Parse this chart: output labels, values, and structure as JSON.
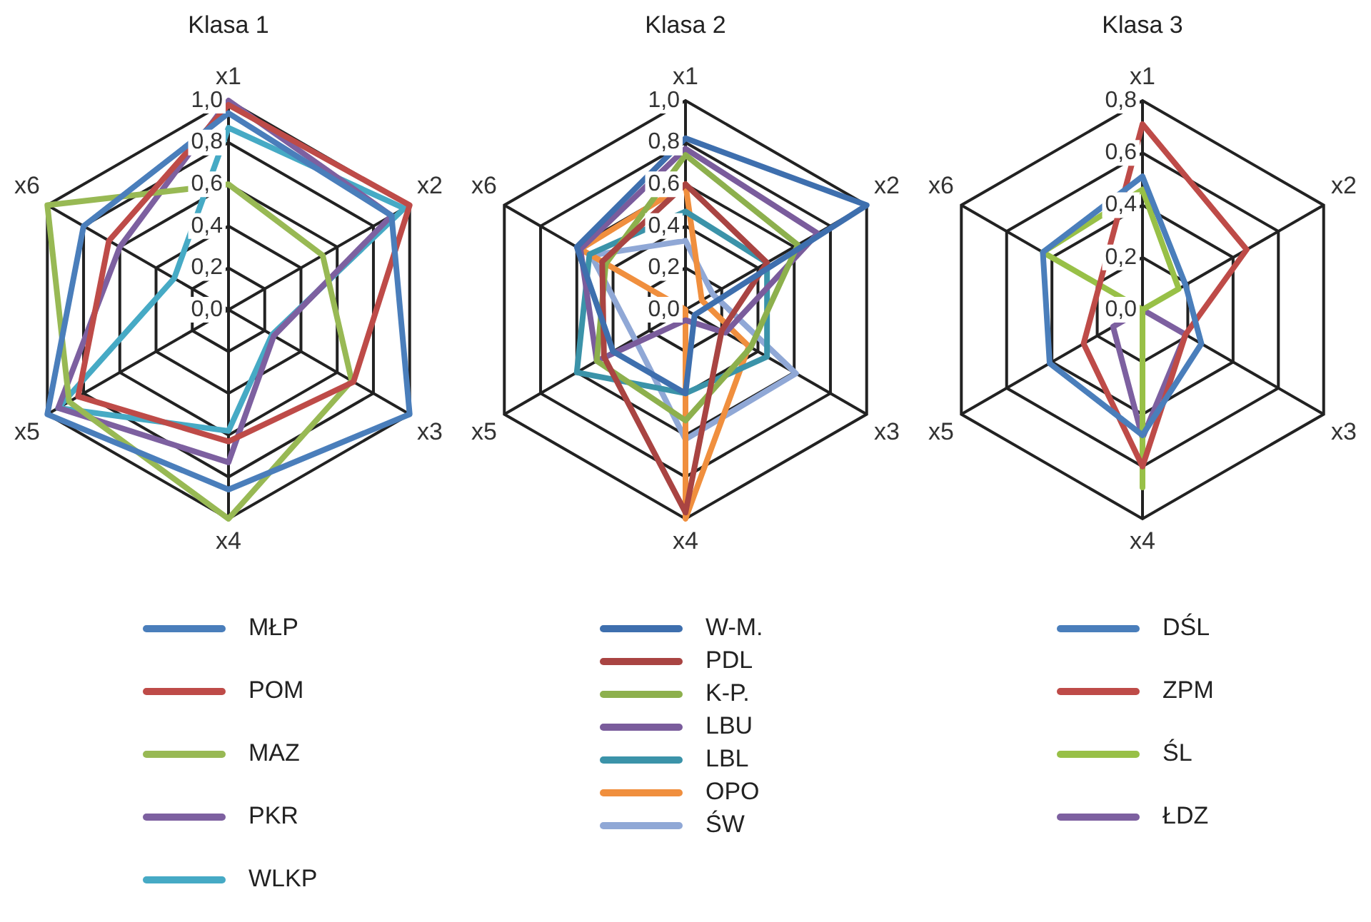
{
  "chart_data": [
    {
      "type": "radar",
      "title": "Klasa 1",
      "categories": [
        "x1",
        "x2",
        "x3",
        "x4",
        "x5",
        "x6"
      ],
      "ylim": [
        0,
        1
      ],
      "yticks": [
        {
          "value": 0,
          "label": "0,0"
        },
        {
          "value": 0.2,
          "label": "0,2"
        },
        {
          "value": 0.4,
          "label": "0,4"
        },
        {
          "value": 0.6,
          "label": "0,6"
        },
        {
          "value": 0.8,
          "label": "0,8"
        },
        {
          "value": 1,
          "label": "1,0"
        }
      ],
      "grid": true,
      "legend": "bottom",
      "marker": "none",
      "series": [
        {
          "name": "MŁP",
          "color": "#4a7ebb",
          "values": [
            0.94,
            0.9,
            1.0,
            0.86,
            1.0,
            0.8
          ]
        },
        {
          "name": "POM",
          "color": "#be4b48",
          "values": [
            0.98,
            1.0,
            0.69,
            0.63,
            0.83,
            0.66
          ]
        },
        {
          "name": "MAZ",
          "color": "#98b954",
          "values": [
            0.6,
            0.52,
            0.68,
            1.0,
            0.88,
            1.0
          ]
        },
        {
          "name": "PKR",
          "color": "#7d60a0",
          "values": [
            1.0,
            0.9,
            0.25,
            0.73,
            0.94,
            0.6
          ]
        },
        {
          "name": "WLKP",
          "color": "#46aac5",
          "values": [
            0.87,
            0.97,
            0.24,
            0.58,
            0.94,
            0.3
          ]
        }
      ]
    },
    {
      "type": "radar",
      "title": "Klasa 2",
      "categories": [
        "x1",
        "x2",
        "x3",
        "x4",
        "x5",
        "x6"
      ],
      "ylim": [
        0,
        1
      ],
      "yticks": [
        {
          "value": 0,
          "label": "0,0"
        },
        {
          "value": 0.2,
          "label": "0,2"
        },
        {
          "value": 0.4,
          "label": "0,4"
        },
        {
          "value": 0.6,
          "label": "0,6"
        },
        {
          "value": 0.8,
          "label": "0,8"
        },
        {
          "value": 1,
          "label": "1,0"
        }
      ],
      "grid": true,
      "legend": "bottom",
      "marker": "none",
      "series": [
        {
          "name": "W-M.",
          "color": "#3e6fae",
          "values": [
            0.82,
            1.0,
            0.05,
            0.4,
            0.4,
            0.6
          ]
        },
        {
          "name": "PDL",
          "color": "#a94442",
          "values": [
            0.6,
            0.45,
            0.2,
            0.97,
            0.45,
            0.46
          ]
        },
        {
          "name": "K-P.",
          "color": "#8db04d",
          "values": [
            0.74,
            0.62,
            0.36,
            0.53,
            0.49,
            0.44
          ]
        },
        {
          "name": "LBU",
          "color": "#7a5c9c",
          "values": [
            0.77,
            0.73,
            0.22,
            0.05,
            0.49,
            0.58
          ]
        },
        {
          "name": "LBL",
          "color": "#3b93a9",
          "values": [
            0.47,
            0.45,
            0.45,
            0.4,
            0.6,
            0.53
          ]
        },
        {
          "name": "OPO",
          "color": "#f08f3e",
          "values": [
            0.6,
            0.09,
            0.35,
            1.0,
            0.0,
            0.58
          ]
        },
        {
          "name": "ŚW",
          "color": "#90a8d6",
          "values": [
            0.33,
            0.15,
            0.61,
            0.62,
            0.28,
            0.52
          ]
        }
      ]
    },
    {
      "type": "radar",
      "title": "Klasa 3",
      "categories": [
        "x1",
        "x2",
        "x3",
        "x4",
        "x5",
        "x6"
      ],
      "ylim": [
        0,
        0.8
      ],
      "yticks": [
        {
          "value": 0,
          "label": "0,0"
        },
        {
          "value": 0.2,
          "label": "0,2"
        },
        {
          "value": 0.4,
          "label": "0,4"
        },
        {
          "value": 0.6,
          "label": "0,6"
        },
        {
          "value": 0.8,
          "label": "0,8"
        }
      ],
      "grid": true,
      "legend": "bottom",
      "marker": "none",
      "series": [
        {
          "name": "DŚL",
          "color": "#4a7ebb",
          "values": [
            0.51,
            0.19,
            0.26,
            0.48,
            0.41,
            0.44
          ]
        },
        {
          "name": "ZPM",
          "color": "#be4b48",
          "values": [
            0.71,
            0.46,
            0.19,
            0.6,
            0.26,
            0.19
          ]
        },
        {
          "name": "ŚL",
          "color": "#98c047",
          "values": [
            0.46,
            0.16,
            0.0,
            0.68,
            0.0,
            0.44
          ]
        },
        {
          "name": "ŁDZ",
          "color": "#7d60a0",
          "values": [
            0.0,
            0.0,
            0.19,
            0.49,
            0.13,
            0.0
          ]
        }
      ]
    }
  ]
}
